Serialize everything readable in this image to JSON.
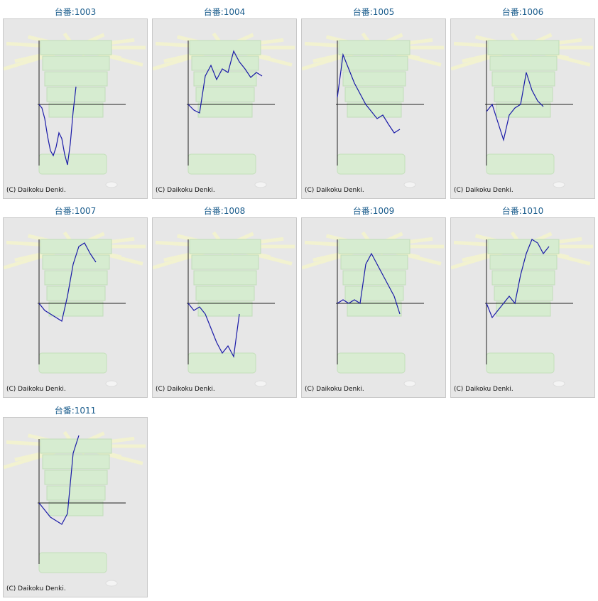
{
  "copyright": "(C) Daikoku Denki.",
  "label_prefix": "台番:",
  "colors": {
    "line": "#1a1aa8",
    "axis": "#222222",
    "label": "#1a5c8c",
    "bg": "#e7e7e7"
  },
  "chart_data": [
    {
      "type": "line",
      "title": "1003",
      "y": [
        0,
        -5,
        -20,
        -45,
        -65,
        -72,
        -60,
        -40,
        -48,
        -70,
        -85,
        -55,
        -10,
        25
      ]
    },
    {
      "type": "line",
      "title": "1004",
      "y": [
        0,
        -8,
        -12,
        40,
        55,
        35,
        50,
        45,
        75,
        60,
        50,
        38,
        45,
        40
      ]
    },
    {
      "type": "line",
      "title": "1005",
      "y": [
        10,
        70,
        50,
        30,
        15,
        0,
        -10,
        -20,
        -15,
        -28,
        -40,
        -35
      ]
    },
    {
      "type": "line",
      "title": "1006",
      "y": [
        -10,
        0,
        -25,
        -50,
        -15,
        -5,
        0,
        45,
        20,
        5,
        -3
      ]
    },
    {
      "type": "line",
      "title": "1007",
      "y": [
        0,
        -10,
        -15,
        -20,
        -25,
        10,
        55,
        80,
        85,
        70,
        58
      ]
    },
    {
      "type": "line",
      "title": "1008",
      "y": [
        0,
        -10,
        -5,
        -15,
        -35,
        -55,
        -70,
        -60,
        -75,
        -15
      ]
    },
    {
      "type": "line",
      "title": "1009",
      "y": [
        0,
        5,
        0,
        5,
        0,
        55,
        70,
        55,
        40,
        25,
        10,
        -15
      ]
    },
    {
      "type": "line",
      "title": "1010",
      "y": [
        0,
        -20,
        -10,
        0,
        10,
        0,
        40,
        70,
        90,
        85,
        70,
        80
      ]
    },
    {
      "type": "line",
      "title": "1011",
      "y": [
        0,
        -10,
        -20,
        -25,
        -30,
        -15,
        70,
        95
      ]
    }
  ]
}
